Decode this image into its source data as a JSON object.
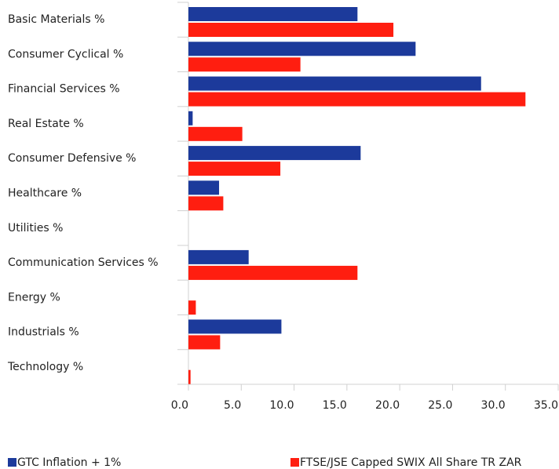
{
  "chart_data": {
    "type": "hbar",
    "categories": [
      "Basic Materials %",
      "Consumer Cyclical %",
      "Financial Services %",
      "Real Estate %",
      "Consumer Defensive %",
      "Healthcare %",
      "Utilities %",
      "Communication Services %",
      "Energy %",
      "Industrials %",
      "Technology %"
    ],
    "series": [
      {
        "name": "GTC Inflation + 1%",
        "color": "#1c3a9b",
        "values": [
          16.0,
          21.5,
          27.7,
          0.4,
          16.3,
          2.9,
          0,
          5.7,
          0,
          8.8,
          0
        ]
      },
      {
        "name": "FTSE/JSE Capped SWIX All Share TR ZAR",
        "color": "#ff1e10",
        "values": [
          19.4,
          10.6,
          31.9,
          5.1,
          8.7,
          3.3,
          0,
          16.0,
          0.7,
          3.0,
          0.2
        ]
      }
    ],
    "xlim": [
      0,
      35
    ],
    "xticks": [
      {
        "value": 0,
        "label": "0.0"
      },
      {
        "value": 5,
        "label": "5.0"
      },
      {
        "value": 10,
        "label": "10.0"
      },
      {
        "value": 15,
        "label": "15.0"
      },
      {
        "value": 20,
        "label": "20.0"
      },
      {
        "value": 25,
        "label": "25.0"
      },
      {
        "value": 30,
        "label": "30.0"
      },
      {
        "value": 35,
        "label": "35.0"
      }
    ],
    "legend": "bottom"
  }
}
